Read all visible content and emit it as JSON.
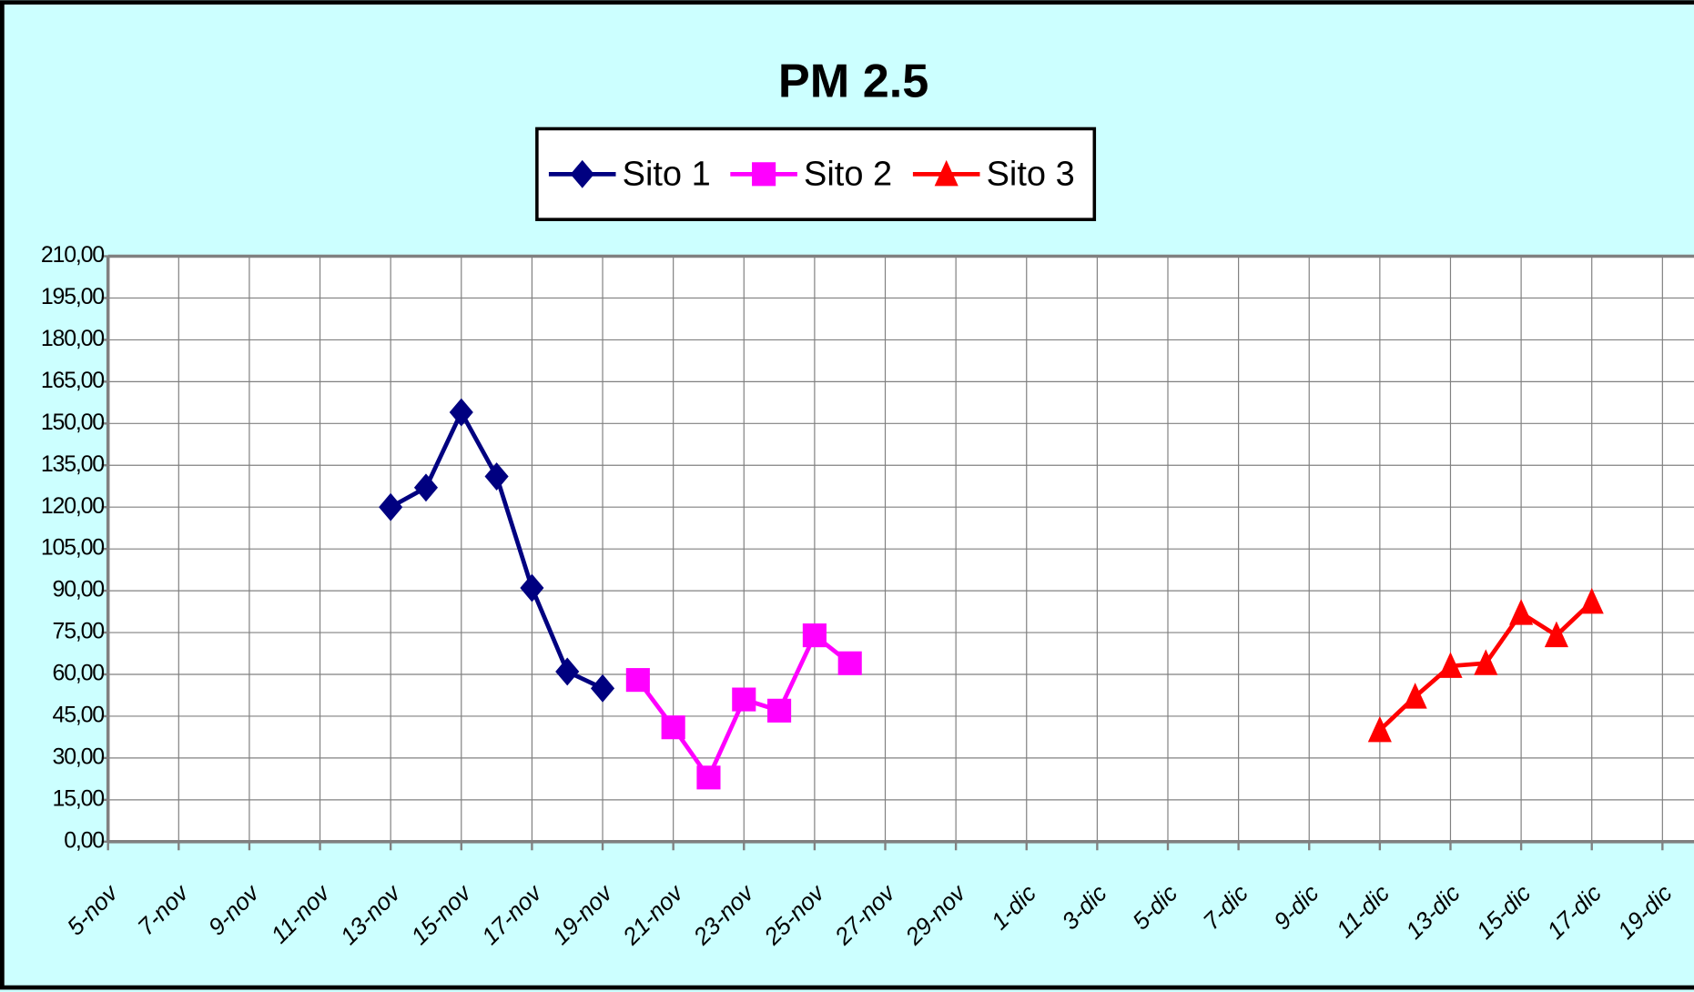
{
  "chart_data": {
    "type": "line",
    "title": "PM 2.5",
    "categories": [
      "5-nov",
      null,
      "7-nov",
      null,
      "9-nov",
      null,
      "11-nov",
      null,
      "13-nov",
      null,
      "15-nov",
      null,
      "17-nov",
      null,
      "19-nov",
      null,
      "21-nov",
      null,
      "23-nov",
      null,
      "25-nov",
      null,
      "27-nov",
      null,
      "29-nov",
      null,
      "1-dic",
      null,
      "3-dic",
      null,
      "5-dic",
      null,
      "7-dic",
      null,
      "9-dic",
      null,
      "11-dic",
      null,
      "13-dic",
      null,
      "15-dic",
      null,
      "17-dic",
      null,
      "19-dic",
      null
    ],
    "series": [
      {
        "name": "Sito 1",
        "color": "#000080",
        "marker": "diamond",
        "values": [
          null,
          null,
          null,
          null,
          null,
          null,
          null,
          null,
          120,
          127,
          154,
          131,
          91,
          61,
          55,
          null,
          null,
          null,
          null,
          null,
          null,
          null,
          null,
          null,
          null,
          null,
          null,
          null,
          null,
          null,
          null,
          null,
          null,
          null,
          null,
          null,
          null,
          null,
          null,
          null,
          null,
          null,
          null,
          null,
          null,
          null
        ]
      },
      {
        "name": "Sito 2",
        "color": "#ff00ff",
        "marker": "square",
        "values": [
          null,
          null,
          null,
          null,
          null,
          null,
          null,
          null,
          null,
          null,
          null,
          null,
          null,
          null,
          null,
          58,
          41,
          23,
          51,
          47,
          74,
          64,
          null,
          null,
          null,
          null,
          null,
          null,
          null,
          null,
          null,
          null,
          null,
          null,
          null,
          null,
          null,
          null,
          null,
          null,
          null,
          null,
          null,
          null,
          null,
          null
        ]
      },
      {
        "name": "Sito 3",
        "color": "#ff0000",
        "marker": "triangle",
        "values": [
          null,
          null,
          null,
          null,
          null,
          null,
          null,
          null,
          null,
          null,
          null,
          null,
          null,
          null,
          null,
          null,
          null,
          null,
          null,
          null,
          null,
          null,
          null,
          null,
          null,
          null,
          null,
          null,
          null,
          null,
          null,
          null,
          null,
          null,
          null,
          null,
          40,
          52,
          63,
          64,
          82,
          74,
          86,
          null,
          null,
          null
        ]
      }
    ],
    "ylim": [
      0,
      210
    ],
    "yticks": [
      {
        "value": 0,
        "label": "0,00"
      },
      {
        "value": 15,
        "label": "15,00"
      },
      {
        "value": 30,
        "label": "30,00"
      },
      {
        "value": 45,
        "label": "45,00"
      },
      {
        "value": 60,
        "label": "60,00"
      },
      {
        "value": 75,
        "label": "75,00"
      },
      {
        "value": 90,
        "label": "90,00"
      },
      {
        "value": 105,
        "label": "105,00"
      },
      {
        "value": 120,
        "label": "120,00"
      },
      {
        "value": 135,
        "label": "135,00"
      },
      {
        "value": 150,
        "label": "150,00"
      },
      {
        "value": 165,
        "label": "165,00"
      },
      {
        "value": 180,
        "label": "180,00"
      },
      {
        "value": 195,
        "label": "195,00"
      },
      {
        "value": 210,
        "label": "210,00"
      }
    ],
    "grid": true,
    "legend": "top"
  }
}
